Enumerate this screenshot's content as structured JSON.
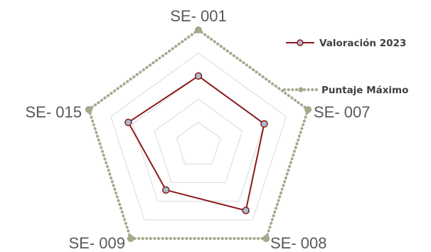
{
  "chart_data": {
    "type": "radar",
    "categories": [
      "SE- 001",
      "SE- 007",
      "SE- 008",
      "SE- 009",
      "SE- 015"
    ],
    "series": [
      {
        "name": "Valoración 2023",
        "values": [
          3.0,
          3.0,
          3.5,
          2.4,
          3.2
        ],
        "color": "#8b1a1a",
        "marker_color": "#a9bcd6",
        "line_style": "solid"
      },
      {
        "name": "Puntaje Máximo",
        "values": [
          5,
          5,
          5,
          5,
          5
        ],
        "color": "#a3a98a",
        "line_style": "dotted"
      }
    ],
    "rlim": [
      0,
      5
    ],
    "grid": true,
    "legend_position": "right"
  }
}
